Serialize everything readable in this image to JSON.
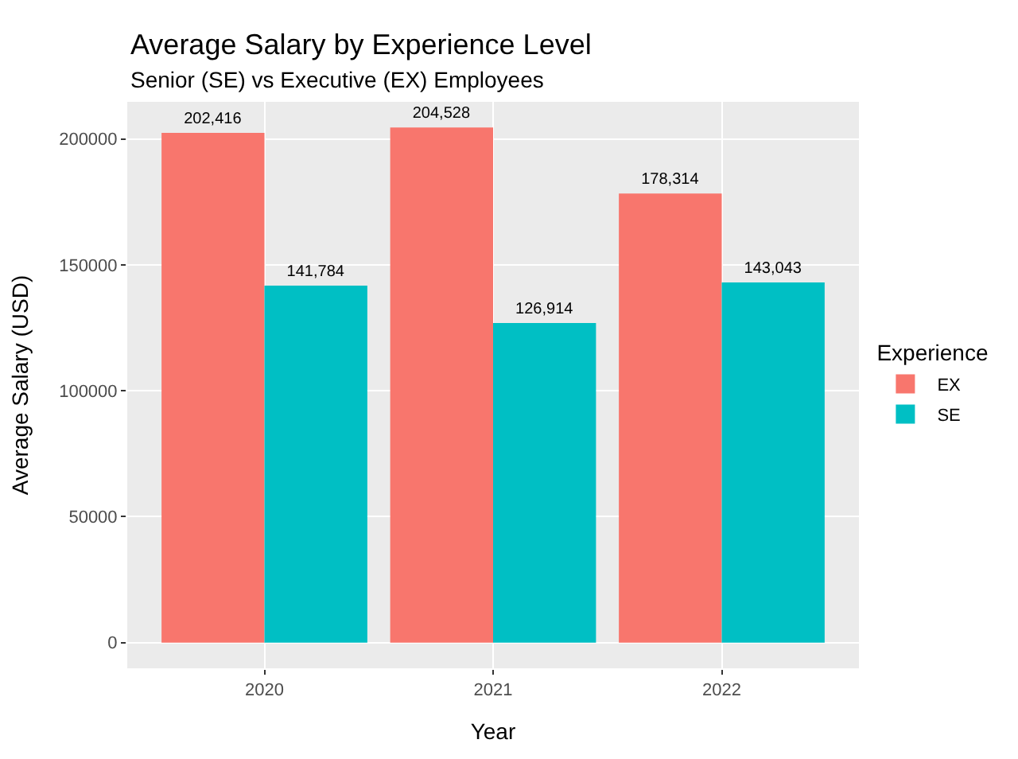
{
  "chart_data": {
    "type": "bar",
    "title": "Average Salary by Experience Level",
    "subtitle": "Senior (SE) vs Executive (EX) Employees",
    "xlabel": "Year",
    "ylabel": "Average Salary (USD)",
    "legend_title": "Experience",
    "categories": [
      "2020",
      "2021",
      "2022"
    ],
    "series": [
      {
        "name": "EX",
        "color": "#f8766d",
        "values": [
          202416,
          204528,
          178314
        ],
        "value_labels": [
          "202,416",
          "204,528",
          "178,314"
        ]
      },
      {
        "name": "SE",
        "color": "#00bfc4",
        "values": [
          141784,
          126914,
          143043
        ],
        "value_labels": [
          "141,784",
          "126,914",
          "143,043"
        ]
      }
    ],
    "ylim": [
      -10226,
      214754
    ],
    "yticks": [
      0,
      50000,
      100000,
      150000,
      200000
    ],
    "grid": true,
    "legend": "right"
  }
}
